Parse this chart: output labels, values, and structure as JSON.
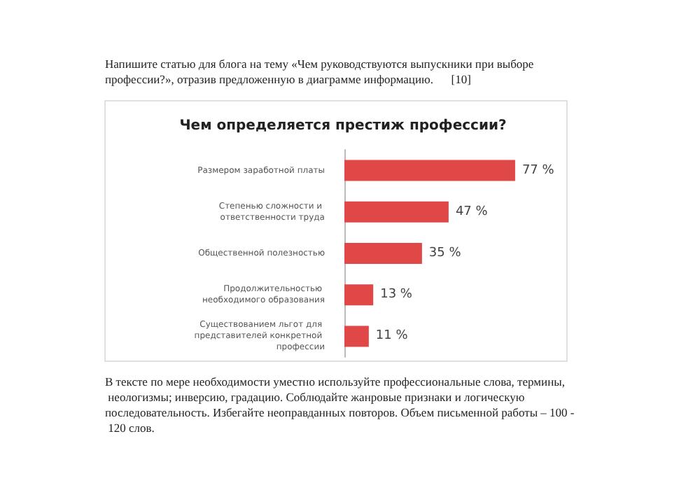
{
  "chart_data": {
    "type": "bar",
    "orientation": "horizontal",
    "title": "Чем определяется престиж профессии?",
    "categories": [
      "Размером заработной платы",
      "Степенью сложности и ответственности труда",
      "Общественной полезностью",
      "Продолжительностью необходимого образования",
      "Существованием льгот для представителей конкретной профессии"
    ],
    "values": [
      77,
      47,
      35,
      13,
      11
    ],
    "value_labels": [
      "77 %",
      "47 %",
      "35 %",
      "13 %",
      "11 %"
    ],
    "color": "#e04848",
    "annotations": [
      "Напишите статью для блога на тему «Чем руководствуются выпускники при выборе профессии?», отразив предложенную в диаграмме информацию.      [10]",
      "В тексте по мере необходимости уместно используйте профессиональные слова, термины, неологизмы; инверсию, градацию. Соблюдайте жанровые признаки и логическую последовательность. Избегайте неоправданных повторов. Объем письменной работы – 100 - 120 слов."
    ]
  }
}
